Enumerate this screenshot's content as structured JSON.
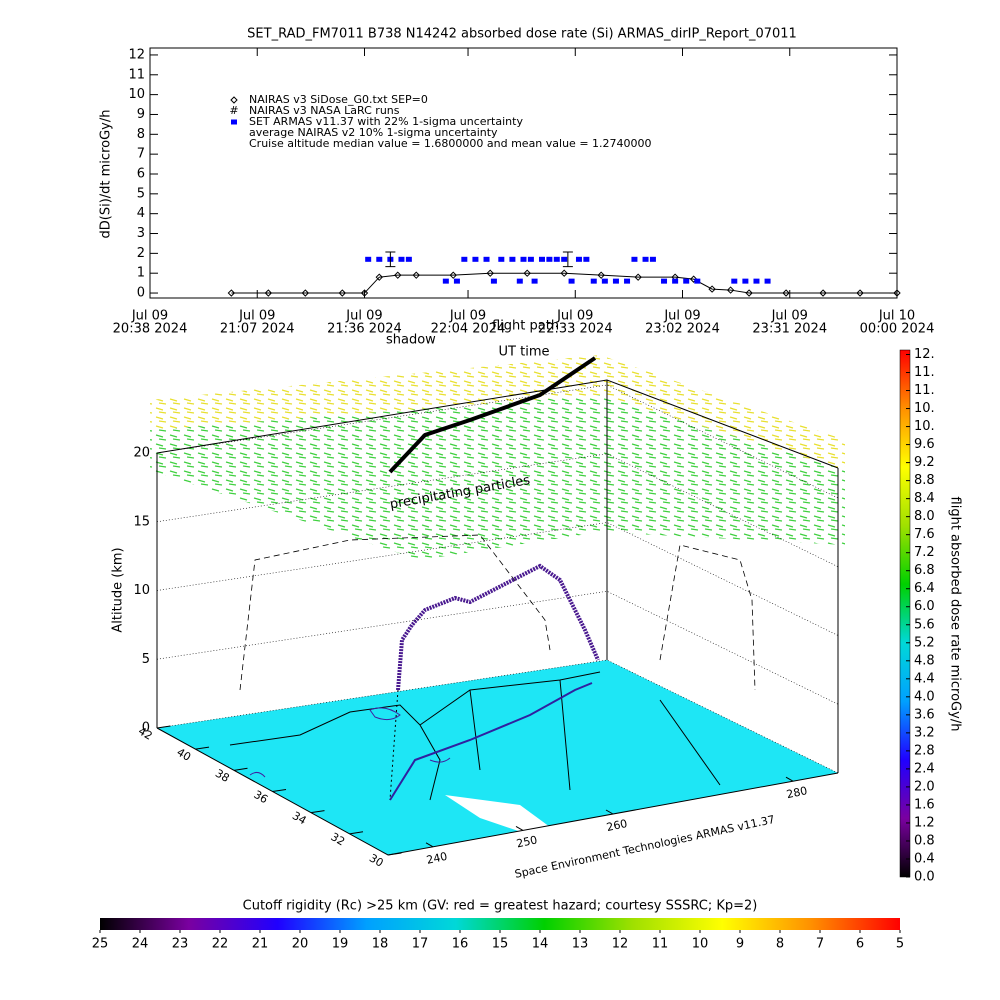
{
  "chart_data": [
    {
      "type": "line",
      "title": "SET_RAD_FM7011  B738 N14242 absorbed dose rate (Si) ARMAS_dirIP_Report_07011",
      "y_label": "dD(Si)/dt microGy/h",
      "x_label": "UT time",
      "xlim": [
        "2024-07-09T20:38",
        "2024-07-10T00:00"
      ],
      "xticks": [
        {
          "value": "2024-07-09T20:38",
          "label": [
            "Jul 09",
            "20:38 2024"
          ]
        },
        {
          "value": "2024-07-09T21:07",
          "label": [
            "Jul 09",
            "21:07 2024"
          ]
        },
        {
          "value": "2024-07-09T21:36",
          "label": [
            "Jul 09",
            "21:36 2024"
          ]
        },
        {
          "value": "2024-07-09T22:04",
          "label": [
            "Jul 09",
            "22:04 2024"
          ]
        },
        {
          "value": "2024-07-09T22:33",
          "label": [
            "Jul 09",
            "22:33 2024"
          ]
        },
        {
          "value": "2024-07-09T23:02",
          "label": [
            "Jul 09",
            "23:02 2024"
          ]
        },
        {
          "value": "2024-07-09T23:31",
          "label": [
            "Jul 09",
            "23:31 2024"
          ]
        },
        {
          "value": "2024-07-10T00:00",
          "label": [
            "Jul 10",
            "00:00 2024"
          ]
        }
      ],
      "ylim": [
        -0.25,
        12.35
      ],
      "yticks": [
        0,
        1,
        2,
        3,
        4,
        5,
        6,
        7,
        8,
        9,
        10,
        11,
        12
      ],
      "series": [
        {
          "name": "NAIRAS v3 SiDose_G0.txt SEP=0",
          "color": "#000000",
          "marker": "diamond",
          "x": [
            "2024-07-09T21:00",
            "2024-07-09T21:10",
            "2024-07-09T21:20",
            "2024-07-09T21:30",
            "2024-07-09T21:36",
            "2024-07-09T21:40",
            "2024-07-09T21:45",
            "2024-07-09T21:50",
            "2024-07-09T22:00",
            "2024-07-09T22:10",
            "2024-07-09T22:20",
            "2024-07-09T22:30",
            "2024-07-09T22:40",
            "2024-07-09T22:50",
            "2024-07-09T23:00",
            "2024-07-09T23:05",
            "2024-07-09T23:10",
            "2024-07-09T23:15",
            "2024-07-09T23:20",
            "2024-07-09T23:30",
            "2024-07-09T23:40",
            "2024-07-09T23:50",
            "2024-07-10T00:00"
          ],
          "values": [
            0,
            0,
            0,
            0,
            0,
            0.8,
            0.9,
            0.9,
            0.9,
            1.0,
            1.0,
            1.0,
            0.9,
            0.8,
            0.8,
            0.7,
            0.2,
            0.15,
            0,
            0,
            0,
            0,
            0
          ]
        },
        {
          "name": "SET ARMAS v11.37 with 22% 1-sigma uncertainty",
          "color": "#0000ff",
          "marker": "square",
          "x": [
            "2024-07-09T21:37",
            "2024-07-09T21:40",
            "2024-07-09T21:43",
            "2024-07-09T21:46",
            "2024-07-09T21:48",
            "2024-07-09T21:58",
            "2024-07-09T22:01",
            "2024-07-09T22:03",
            "2024-07-09T22:06",
            "2024-07-09T22:09",
            "2024-07-09T22:11",
            "2024-07-09T22:13",
            "2024-07-09T22:16",
            "2024-07-09T22:18",
            "2024-07-09T22:19",
            "2024-07-09T22:21",
            "2024-07-09T22:22",
            "2024-07-09T22:24",
            "2024-07-09T22:26",
            "2024-07-09T22:28",
            "2024-07-09T22:30",
            "2024-07-09T22:32",
            "2024-07-09T22:34",
            "2024-07-09T22:36",
            "2024-07-09T22:38",
            "2024-07-09T22:41",
            "2024-07-09T22:44",
            "2024-07-09T22:47",
            "2024-07-09T22:49",
            "2024-07-09T22:52",
            "2024-07-09T22:54",
            "2024-07-09T22:57",
            "2024-07-09T23:00",
            "2024-07-09T23:03",
            "2024-07-09T23:06",
            "2024-07-09T23:16",
            "2024-07-09T23:19",
            "2024-07-09T23:22",
            "2024-07-09T23:25"
          ],
          "values": [
            1.7,
            1.7,
            1.7,
            1.7,
            1.7,
            0.6,
            0.6,
            1.7,
            1.7,
            1.7,
            0.6,
            1.7,
            1.7,
            0.6,
            1.7,
            1.7,
            0.6,
            1.7,
            1.7,
            1.7,
            1.7,
            0.6,
            1.7,
            1.7,
            0.6,
            0.6,
            0.6,
            0.6,
            1.7,
            1.7,
            1.7,
            0.6,
            0.6,
            0.6,
            0.6,
            0.6,
            0.6,
            0.6,
            0.6
          ],
          "error_bars": {
            "x": [
              "2024-07-09T21:43",
              "2024-07-09T22:31"
            ],
            "values": [
              1.7,
              1.7
            ],
            "errors": [
              0.37,
              0.37
            ]
          }
        }
      ],
      "legend_extra": [
        "NAIRAS v3 NASA LaRC runs",
        "average NAIRAS v2 10% 1-sigma uncertainty"
      ],
      "annotation": "Cruise altitude median value = 1.6800000 and mean value = 1.2740000"
    },
    {
      "type": "surface3d",
      "annotations": [
        "shadow",
        "flight path",
        "precipitating particles"
      ],
      "z_label": "Altitude (km)",
      "zlim": [
        0,
        20
      ],
      "zticks": [
        0,
        5,
        10,
        15,
        20
      ],
      "yticks": [
        42,
        40,
        38,
        36,
        34,
        32,
        30
      ],
      "xticks": [
        240,
        250,
        260,
        280
      ],
      "credit": "Space Environment Technologies ARMAS v11.37"
    },
    {
      "type": "colorbar",
      "orientation": "vertical",
      "label": "flight absorbed dose rate microGy/h",
      "clim": [
        0,
        11.7
      ],
      "colors": [
        "#000000",
        "#7a00a0",
        "#2000ff",
        "#00a0ff",
        "#00d8d8",
        "#00d000",
        "#a0e000",
        "#ffff00",
        "#ff9000",
        "#ff0000"
      ],
      "ticks": [
        {
          "value": 0,
          "label": "0.0"
        },
        0.4,
        0.8,
        1.2,
        1.6,
        {
          "value": 2,
          "label": "2.0"
        },
        2.4,
        2.8,
        3.2,
        3.6,
        {
          "value": 4,
          "label": "4.0"
        },
        4.4,
        4.8,
        5.2,
        5.6,
        {
          "value": 6,
          "label": "6.0"
        },
        6.4,
        6.8,
        7.2,
        7.6,
        {
          "value": 8,
          "label": "8.0"
        },
        8.4,
        8.8,
        9.2,
        9.6,
        {
          "value": 10,
          "label": "10."
        },
        {
          "value": 10.4,
          "label": "10."
        },
        {
          "value": 10.8,
          "label": "11."
        },
        {
          "value": 11.2,
          "label": "11."
        },
        {
          "value": 11.6,
          "label": "12."
        }
      ]
    },
    {
      "type": "colorbar",
      "orientation": "horizontal",
      "label": "Cutoff rigidity (Rc) >25 km (GV: red = greatest hazard; courtesy SSSRC; Kp=2)",
      "clim": [
        25,
        5
      ],
      "colors": [
        "#000000",
        "#7a00a0",
        "#2000ff",
        "#00a0ff",
        "#00d8d8",
        "#00d000",
        "#a0e000",
        "#ffff00",
        "#ff9000",
        "#ff0000"
      ],
      "ticks": [
        25,
        24,
        23,
        22,
        21,
        20,
        19,
        18,
        17,
        16,
        15,
        14,
        13,
        12,
        11,
        10,
        9,
        8,
        7,
        6,
        5
      ]
    }
  ]
}
